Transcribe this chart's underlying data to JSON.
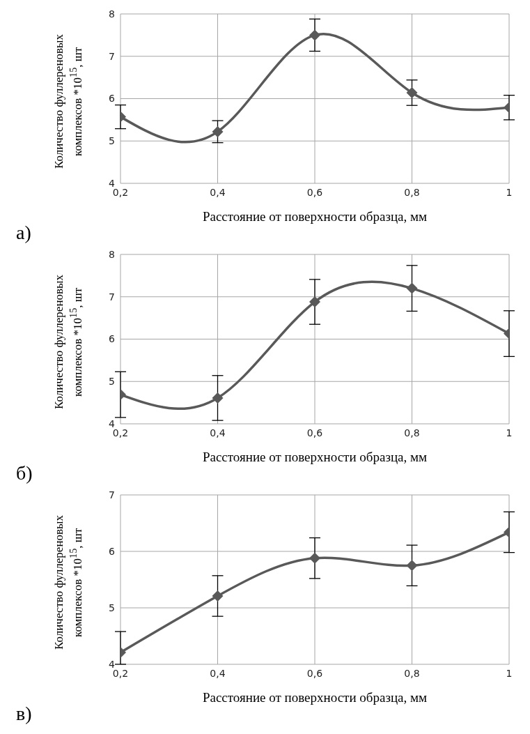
{
  "chart_data": [
    {
      "type": "line",
      "xlabel": "Расстояние от поверхности образца, мм",
      "ylabel": "Количество фуллереновых комплексов *10$^{15}$, шт",
      "annotations": [
        "а)"
      ],
      "x": [
        0.2,
        0.4,
        0.6,
        0.8,
        1.0
      ],
      "series": [
        {
          "color": "#595959",
          "values": [
            5.57,
            5.22,
            7.5,
            6.14,
            5.79
          ],
          "errors": [
            0.28,
            0.26,
            0.38,
            0.3,
            0.29
          ]
        }
      ],
      "xlim": [
        0.2,
        1.0
      ],
      "xticks": [
        {
          "value": 0.2,
          "label": "0,2"
        },
        {
          "value": 0.4,
          "label": "0,4"
        },
        {
          "value": 0.6,
          "label": "0,6"
        },
        {
          "value": 0.8,
          "label": "0,8"
        },
        {
          "value": 1.0,
          "label": "1"
        }
      ],
      "ylim": [
        4,
        8
      ],
      "yticks": [
        4,
        5,
        6,
        7,
        8
      ],
      "grid": true,
      "marker": "diamond",
      "line_style": "solid"
    },
    {
      "type": "line",
      "xlabel": "Расстояние от поверхности образца, мм",
      "ylabel": "Количество фуллереновых комплексов *10$^{15}$, шт",
      "annotations": [
        "б)"
      ],
      "x": [
        0.2,
        0.4,
        0.6,
        0.8,
        1.0
      ],
      "series": [
        {
          "color": "#595959",
          "values": [
            4.69,
            4.61,
            6.88,
            7.2,
            6.13
          ],
          "errors": [
            0.54,
            0.53,
            0.53,
            0.54,
            0.54
          ]
        }
      ],
      "xlim": [
        0.2,
        1.0
      ],
      "xticks": [
        {
          "value": 0.2,
          "label": "0,2"
        },
        {
          "value": 0.4,
          "label": "0,4"
        },
        {
          "value": 0.6,
          "label": "0,6"
        },
        {
          "value": 0.8,
          "label": "0,8"
        },
        {
          "value": 1.0,
          "label": "1"
        }
      ],
      "ylim": [
        4,
        8
      ],
      "yticks": [
        4,
        5,
        6,
        7,
        8
      ],
      "grid": true,
      "marker": "diamond",
      "line_style": "solid"
    },
    {
      "type": "line",
      "xlabel": "Расстояние от поверхности образца, мм",
      "ylabel": "Количество фуллереновых комплексов *10$^{15}$, шт",
      "annotations": [
        "в)"
      ],
      "x": [
        0.2,
        0.4,
        0.6,
        0.8,
        1.0
      ],
      "series": [
        {
          "color": "#595959",
          "values": [
            4.21,
            5.21,
            5.88,
            5.75,
            6.34
          ],
          "errors": [
            [
              4.0,
              4.58
            ],
            0.36,
            0.36,
            0.36,
            0.36
          ]
        }
      ],
      "xlim": [
        0.2,
        1.0
      ],
      "xticks": [
        {
          "value": 0.2,
          "label": "0,2"
        },
        {
          "value": 0.4,
          "label": "0,4"
        },
        {
          "value": 0.6,
          "label": "0,6"
        },
        {
          "value": 0.8,
          "label": "0,8"
        },
        {
          "value": 1.0,
          "label": "1"
        }
      ],
      "ylim": [
        4,
        7
      ],
      "yticks": [
        4,
        5,
        6,
        7
      ],
      "grid": true,
      "marker": "diamond",
      "line_style": "solid"
    }
  ]
}
